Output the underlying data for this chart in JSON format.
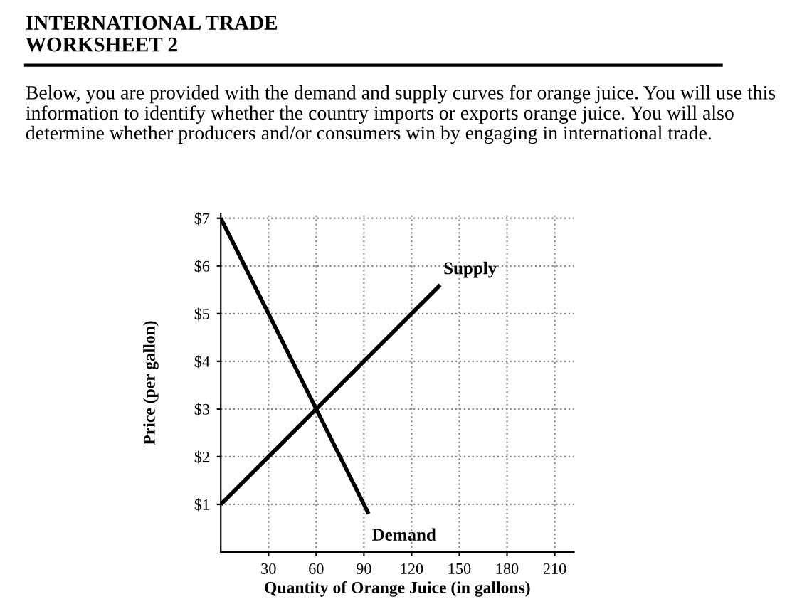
{
  "chart_data": {
    "type": "line",
    "title": "INTERNATIONAL TRADE\nWORKSHEET 2",
    "subtitle": "Below, you are provided with the demand and supply curves for orange juice. You will use this information to identify whether the country imports or exports orange juice. You will also determine whether producers and/or consumers win by engaging in international trade.",
    "xlabel": "Quantity of Orange Juice (in gallons)",
    "ylabel": "Price (per gallon)",
    "series": [
      {
        "name": "Supply",
        "color": "#000000",
        "x": [
          0,
          138
        ],
        "values": [
          1,
          5.6
        ]
      },
      {
        "name": "Demand",
        "color": "#000000",
        "x": [
          0,
          93
        ],
        "values": [
          7,
          0.8
        ]
      }
    ],
    "xlim": [
      0,
      222
    ],
    "ylim": [
      0,
      7.1
    ],
    "xticks": [
      30,
      60,
      90,
      120,
      150,
      180,
      210
    ],
    "yticks": [
      {
        "value": 1,
        "label": "$1"
      },
      {
        "value": 2,
        "label": "$2"
      },
      {
        "value": 3,
        "label": "$3"
      },
      {
        "value": 4,
        "label": "$4"
      },
      {
        "value": 5,
        "label": "$5"
      },
      {
        "value": 6,
        "label": "$6"
      },
      {
        "value": 7,
        "label": "$7"
      }
    ],
    "grid": true,
    "legend": false,
    "marker": "none",
    "line_style": "solid"
  }
}
